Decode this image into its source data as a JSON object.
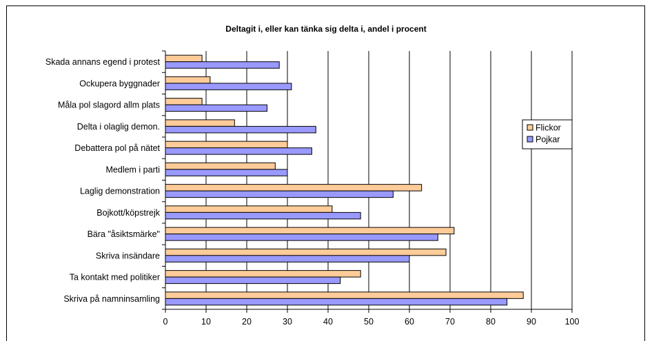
{
  "chart_data": {
    "type": "bar",
    "orientation": "horizontal",
    "title": "Deltagit i, eller kan tänka sig delta i, andel i procent",
    "xlabel": "",
    "ylabel": "",
    "xlim": [
      0,
      100
    ],
    "xticks": [
      0,
      10,
      20,
      30,
      40,
      50,
      60,
      70,
      80,
      90,
      100
    ],
    "grid": "vertical",
    "legend_position": "right",
    "categories": [
      "Skada annans egend i protest",
      "Ockupera byggnader",
      "Måla pol slagord allm plats",
      "Delta i olaglig demon.",
      "Debattera pol på nätet",
      "Medlem i parti",
      "Laglig demonstration",
      "Bojkott/köpstrejk",
      "Bära \"åsiktsmärke\"",
      "Skriva insändare",
      "Ta kontakt med politiker",
      "Skriva på namninsamling"
    ],
    "series": [
      {
        "name": "Flickor",
        "color": "#FFCC99",
        "values": [
          9,
          11,
          9,
          17,
          30,
          27,
          63,
          41,
          71,
          69,
          48,
          88
        ]
      },
      {
        "name": "Pojkar",
        "color": "#9999FF",
        "values": [
          28,
          31,
          25,
          37,
          36,
          30,
          56,
          48,
          67,
          60,
          43,
          84
        ]
      }
    ]
  }
}
